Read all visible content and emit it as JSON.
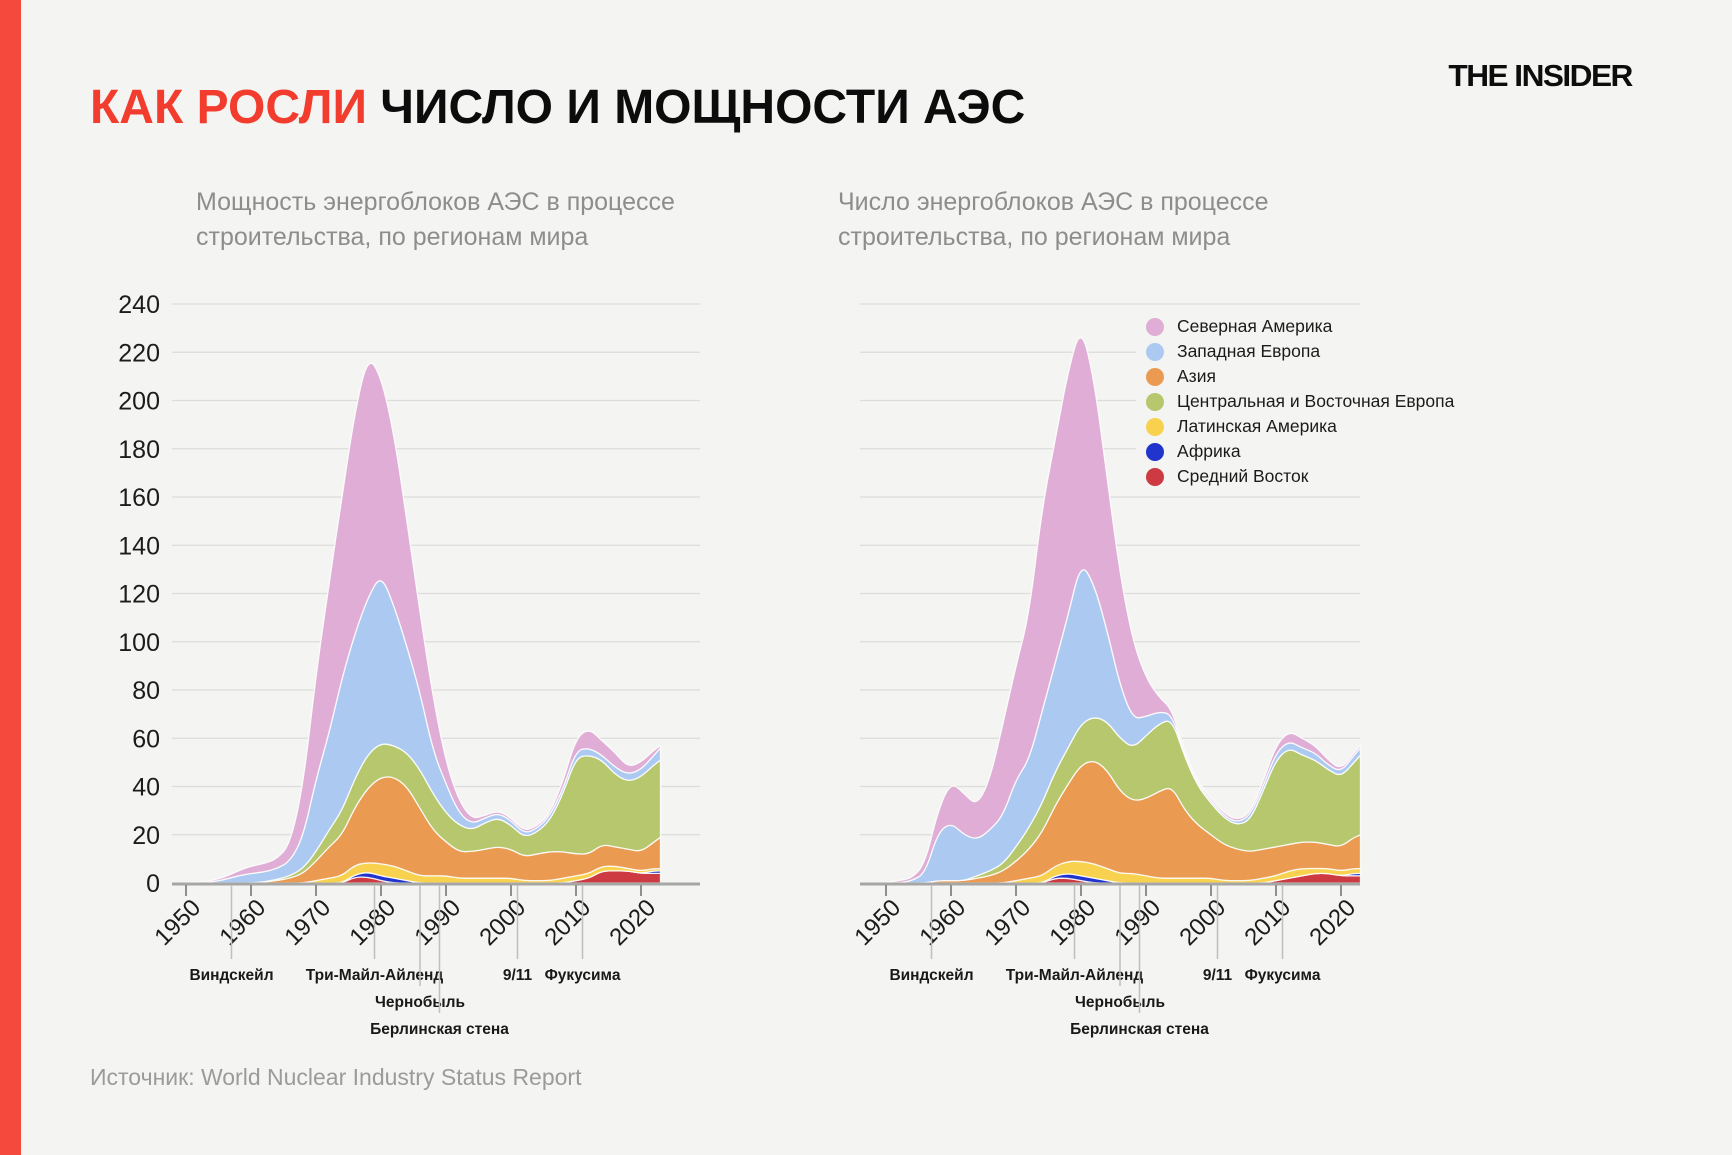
{
  "page": {
    "background": "#f4f4f2",
    "accent_bar_color": "#f4493c",
    "title_highlight_color": "#f23c2d"
  },
  "header": {
    "title_highlight": "КАК РОСЛИ",
    "title_rest": " ЧИСЛО И МОЩНОСТИ АЭС",
    "logo": "THE INSIDER"
  },
  "source": "Источник: World Nuclear Industry Status Report",
  "legend": {
    "items": [
      {
        "label": "Северная Америка",
        "color": "#dfadd5"
      },
      {
        "label": "Западная Европа",
        "color": "#accaf1"
      },
      {
        "label": "Азия",
        "color": "#eb9b51"
      },
      {
        "label": "Центральная и Восточная Европа",
        "color": "#b7c76d"
      },
      {
        "label": "Латинская Америка",
        "color": "#f8d14f"
      },
      {
        "label": "Африка",
        "color": "#2135cc"
      },
      {
        "label": "Средний Восток",
        "color": "#ce3a41"
      }
    ]
  },
  "axis": {
    "y_ticks": [
      0,
      20,
      40,
      60,
      80,
      100,
      120,
      140,
      160,
      180,
      200,
      220,
      240
    ],
    "x_ticks": [
      1950,
      1960,
      1970,
      1980,
      1990,
      2000,
      2010,
      2020
    ],
    "ylim": [
      0,
      240
    ]
  },
  "events": [
    {
      "year": 1957,
      "label": "Виндскейл",
      "row": 1
    },
    {
      "year": 1979,
      "label": "Три-Майл-Айленд",
      "row": 1
    },
    {
      "year": 1986,
      "label": "Чернобыль",
      "row": 2
    },
    {
      "year": 1989,
      "label": "Берлинская стена",
      "row": 3
    },
    {
      "year": 2001,
      "label": "9/11",
      "row": 1
    },
    {
      "year": 2011,
      "label": "Фукусима",
      "row": 1
    }
  ],
  "chart_data": [
    {
      "type": "area",
      "stacked": true,
      "subtitle_line1": "Мощность энергоблоков АЭС в процессе",
      "subtitle_line2": "строительства, по регионам мира",
      "grid": true,
      "show_y_labels": true,
      "ylim": [
        0,
        240
      ],
      "years": [
        1950,
        1952,
        1954,
        1956,
        1958,
        1960,
        1962,
        1964,
        1966,
        1968,
        1970,
        1972,
        1974,
        1976,
        1978,
        1980,
        1982,
        1984,
        1986,
        1988,
        1990,
        1992,
        1994,
        1996,
        1998,
        2000,
        2002,
        2004,
        2006,
        2008,
        2010,
        2012,
        2014,
        2016,
        2018,
        2020,
        2022,
        2023
      ],
      "series": [
        {
          "name": "Средний Восток",
          "color": "#ce3a41",
          "values": [
            0,
            0,
            0,
            0,
            0,
            0,
            0,
            0,
            0,
            0,
            0,
            0,
            0,
            2.5,
            2.5,
            1,
            0,
            0,
            0,
            0,
            0,
            0,
            0,
            0,
            0,
            0,
            0,
            0,
            0,
            0,
            1,
            2,
            5,
            5,
            5,
            4,
            4,
            4
          ]
        },
        {
          "name": "Африка",
          "color": "#2135cc",
          "values": [
            0,
            0,
            0,
            0,
            0,
            0,
            0,
            0,
            0,
            0,
            0,
            0,
            0,
            1,
            2,
            2,
            2,
            1,
            0,
            0,
            0,
            0,
            0,
            0,
            0,
            0,
            0,
            0,
            0,
            0,
            0,
            0,
            0,
            0,
            0,
            0,
            1,
            1
          ]
        },
        {
          "name": "Латинская Америка",
          "color": "#f8d14f",
          "values": [
            0,
            0,
            0,
            0,
            0,
            0,
            0,
            0,
            0,
            0,
            1,
            2,
            3,
            4,
            4,
            5,
            5,
            4,
            3,
            3,
            3,
            2,
            2,
            2,
            2,
            2,
            1,
            1,
            1,
            2,
            2,
            2,
            2,
            2,
            1,
            1,
            1,
            1
          ]
        },
        {
          "name": "Азия",
          "color": "#eb9b51",
          "values": [
            0,
            0,
            0,
            0,
            0,
            0,
            0.5,
            1,
            2,
            4,
            8,
            13,
            17,
            24,
            31,
            36,
            37,
            35,
            28,
            19,
            14,
            11,
            11,
            12,
            13,
            12,
            10,
            11,
            12,
            11,
            9,
            8,
            9,
            8,
            8,
            8,
            11,
            13
          ]
        },
        {
          "name": "Центральная и Восточная Европа",
          "color": "#b7c76d",
          "values": [
            0,
            0,
            0,
            0,
            0,
            0,
            0,
            0.5,
            1,
            2,
            4,
            7,
            10,
            12,
            14,
            14,
            13,
            14,
            16,
            15,
            12,
            11,
            9,
            11,
            12,
            10,
            8,
            9,
            13,
            24,
            40,
            41,
            35,
            30,
            28,
            31,
            32,
            32
          ]
        },
        {
          "name": "Западная Европа",
          "color": "#accaf1",
          "values": [
            0,
            0,
            0.5,
            1.5,
            3,
            4,
            4,
            4.5,
            6,
            13,
            30,
            40,
            55,
            60,
            65,
            70,
            58,
            44,
            32,
            18,
            12,
            5,
            2.5,
            2,
            2,
            2,
            1.5,
            1.5,
            2,
            2,
            3,
            3,
            2,
            3,
            3,
            3,
            4,
            5
          ]
        },
        {
          "name": "Северная Америка",
          "color": "#dfadd5",
          "values": [
            0,
            0.3,
            0.5,
            1,
            2,
            3,
            3.5,
            4,
            7,
            21,
            43,
            62,
            75,
            92,
            100,
            82,
            71,
            52,
            33,
            22,
            9,
            5,
            2,
            1,
            1,
            1,
            1,
            1,
            1,
            3,
            5,
            8,
            6,
            6,
            3,
            3,
            2,
            1
          ]
        }
      ]
    },
    {
      "type": "area",
      "stacked": true,
      "subtitle_line1": "Число энергоблоков АЭС в процессе",
      "subtitle_line2": "строительства, по регионам мира",
      "grid": true,
      "show_y_labels": false,
      "ylim": [
        0,
        240
      ],
      "years": [
        1950,
        1952,
        1954,
        1956,
        1958,
        1960,
        1962,
        1964,
        1966,
        1968,
        1970,
        1972,
        1974,
        1976,
        1978,
        1980,
        1982,
        1984,
        1986,
        1988,
        1990,
        1992,
        1994,
        1996,
        1998,
        2000,
        2002,
        2004,
        2006,
        2008,
        2010,
        2012,
        2014,
        2016,
        2018,
        2020,
        2022,
        2023
      ],
      "series": [
        {
          "name": "Средний Восток",
          "color": "#ce3a41",
          "values": [
            0,
            0,
            0,
            0,
            0,
            0,
            0,
            0,
            0,
            0,
            0,
            0,
            0,
            2,
            2,
            1,
            0,
            0,
            0,
            0,
            0,
            0,
            0,
            0,
            0,
            0,
            0,
            0,
            0,
            0,
            1,
            2,
            3,
            4,
            4,
            3,
            3,
            3
          ]
        },
        {
          "name": "Африка",
          "color": "#2135cc",
          "values": [
            0,
            0,
            0,
            0,
            0,
            0,
            0,
            0,
            0,
            0,
            0,
            0,
            0,
            1,
            2,
            2,
            2,
            1,
            0,
            0,
            0,
            0,
            0,
            0,
            0,
            0,
            0,
            0,
            0,
            0,
            0,
            0,
            0,
            0,
            0,
            0,
            1,
            1
          ]
        },
        {
          "name": "Латинская Америка",
          "color": "#f8d14f",
          "values": [
            0,
            0,
            0,
            0,
            0,
            0,
            0,
            0,
            0,
            0,
            1,
            2,
            3,
            4,
            5,
            6,
            6,
            5,
            4,
            4,
            3,
            2,
            2,
            2,
            2,
            2,
            1,
            1,
            1,
            2,
            2,
            3,
            3,
            2,
            2,
            2,
            2,
            2
          ]
        },
        {
          "name": "Азия",
          "color": "#eb9b51",
          "values": [
            0,
            0,
            0,
            0,
            1,
            1,
            1,
            2,
            3,
            5,
            8,
            12,
            18,
            25,
            32,
            40,
            43,
            41,
            34,
            30,
            32,
            36,
            38,
            28,
            22,
            18,
            15,
            13,
            12,
            12,
            12,
            11,
            11,
            11,
            10,
            10,
            13,
            14
          ]
        },
        {
          "name": "Центральная и Восточная Европа",
          "color": "#b7c76d",
          "values": [
            0,
            0,
            0,
            0,
            0,
            0,
            0,
            1,
            2,
            3,
            6,
            9,
            12,
            14,
            15,
            17,
            18,
            20,
            22,
            22,
            26,
            28,
            28,
            22,
            16,
            13,
            11,
            10,
            13,
            24,
            36,
            40,
            36,
            34,
            31,
            29,
            31,
            33
          ]
        },
        {
          "name": "Западная Европа",
          "color": "#accaf1",
          "values": [
            0,
            0,
            1,
            4,
            20,
            24,
            19,
            15,
            17,
            20,
            28,
            28,
            38,
            45,
            55,
            67,
            55,
            38,
            22,
            12,
            8,
            5,
            2,
            1,
            1,
            1,
            1,
            1,
            2,
            2,
            3,
            3,
            3,
            3,
            2,
            2,
            3,
            3
          ]
        },
        {
          "name": "Северная Америка",
          "color": "#dfadd5",
          "values": [
            0,
            1,
            1,
            4,
            9,
            17,
            17,
            14,
            21,
            38,
            47,
            60,
            84,
            92,
            101,
            98,
            85,
            63,
            46,
            32,
            16,
            6,
            2,
            1,
            1,
            1,
            1,
            1,
            1,
            2,
            3,
            4,
            4,
            3,
            2,
            1,
            1,
            1
          ]
        }
      ]
    }
  ]
}
